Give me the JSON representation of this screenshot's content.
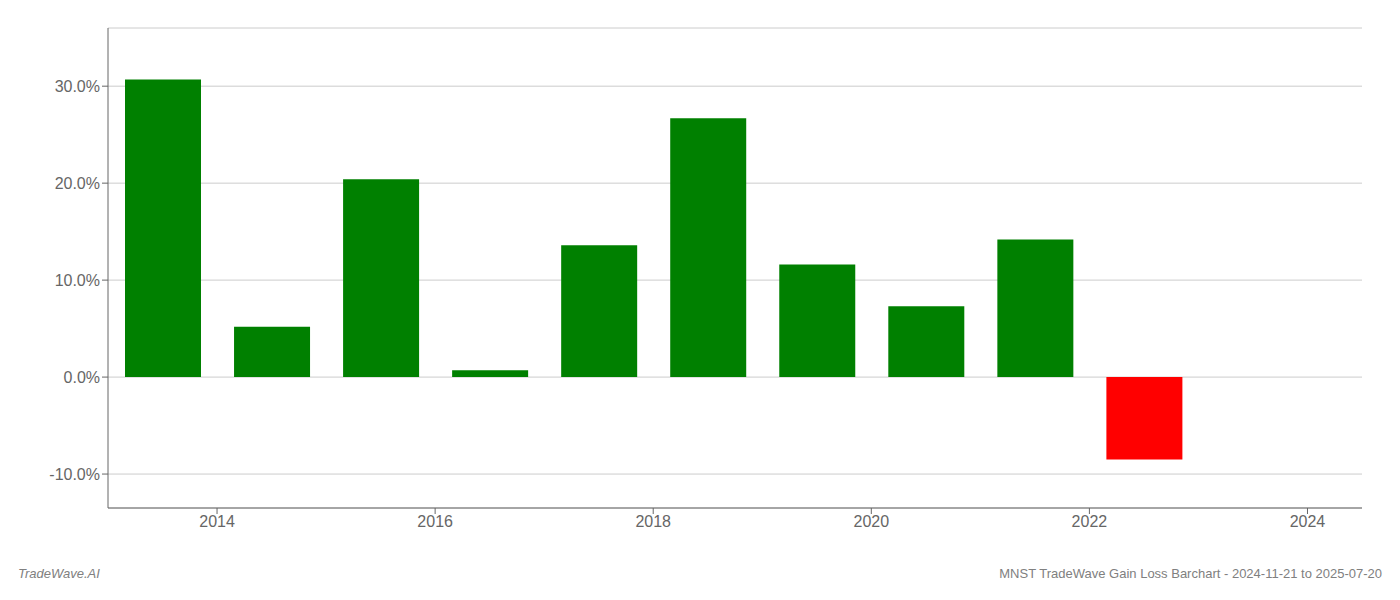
{
  "chart_data": {
    "type": "bar",
    "x": [
      2013.5,
      2014.5,
      2015.5,
      2016.5,
      2017.5,
      2018.5,
      2019.5,
      2020.5,
      2021.5,
      2022.5
    ],
    "values": [
      0.307,
      0.052,
      0.204,
      0.007,
      0.136,
      0.267,
      0.116,
      0.073,
      0.142,
      -0.085
    ],
    "colors": [
      "#008000",
      "#008000",
      "#008000",
      "#008000",
      "#008000",
      "#008000",
      "#008000",
      "#008000",
      "#008000",
      "#ff0000"
    ],
    "xlim": [
      2013.0,
      2024.5
    ],
    "ylim": [
      -0.135,
      0.36
    ],
    "xticks": [
      2014,
      2016,
      2018,
      2020,
      2022,
      2024
    ],
    "yticks": [
      {
        "value": -0.1,
        "label": "-10.0%"
      },
      {
        "value": 0.0,
        "label": "0.0%"
      },
      {
        "value": 0.1,
        "label": "10.0%"
      },
      {
        "value": 0.2,
        "label": "20.0%"
      },
      {
        "value": 0.3,
        "label": "30.0%"
      }
    ],
    "grid": true,
    "annotations": [
      "TradeWave.AI",
      "MNST TradeWave Gain Loss Barchart - 2024-11-21 to 2025-07-20"
    ]
  }
}
